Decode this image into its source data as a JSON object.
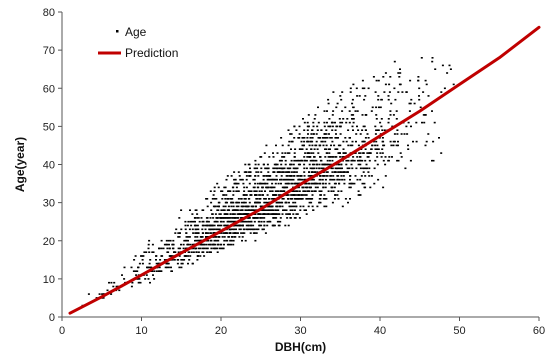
{
  "chart_data": {
    "type": "scatter",
    "title": "",
    "xlabel": "DBH(cm)",
    "ylabel": "Age(year)",
    "xlim": [
      0,
      60
    ],
    "ylim": [
      0,
      80
    ],
    "x_ticks": [
      0,
      10,
      20,
      30,
      40,
      50,
      60
    ],
    "y_ticks": [
      0,
      10,
      20,
      30,
      40,
      50,
      60,
      70,
      80
    ],
    "grid": false,
    "legend_position": "top-left",
    "series": [
      {
        "name": "Age",
        "kind": "scatter",
        "color": "#000000",
        "marker": "small-square",
        "band": {
          "x_range": [
            0.5,
            50
          ],
          "slope_center": 1.18,
          "slope_lower": 0.82,
          "slope_upper": 1.95,
          "count": 2200,
          "seed": 7
        }
      },
      {
        "name": "Prediction",
        "kind": "line",
        "color": "#c00000",
        "x": [
          1,
          5,
          10,
          15,
          20,
          25,
          30,
          35,
          40,
          45,
          50,
          55,
          60
        ],
        "y": [
          1,
          5.3,
          11,
          16.8,
          22.5,
          28.3,
          34.8,
          41,
          47.5,
          54,
          61,
          68,
          76
        ]
      }
    ]
  }
}
